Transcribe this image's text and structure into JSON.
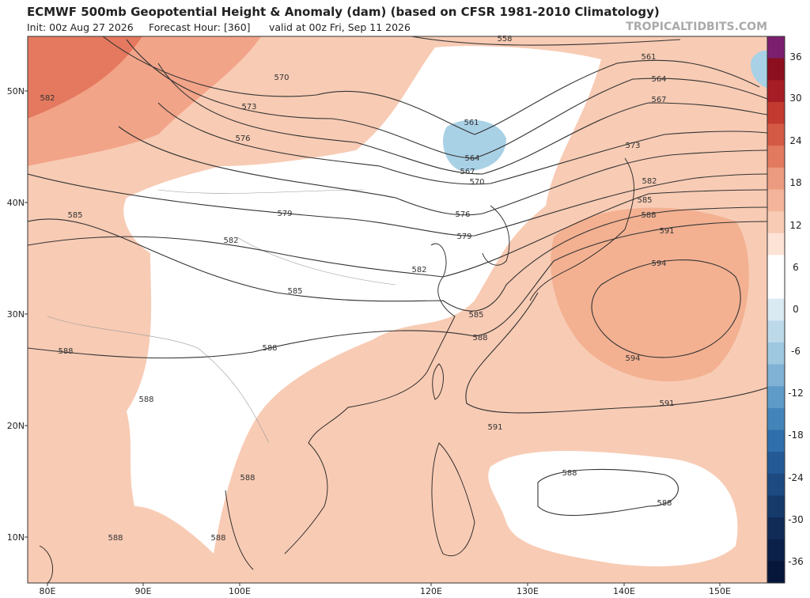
{
  "header": {
    "title": "ECMWF 500mb Geopotential Height & Anomaly (dam) (based on CFSR 1981-2010 Climatology)",
    "init": "Init: 00z Aug 27 2026",
    "forecast_hour": "Forecast Hour: [360]",
    "valid": "valid at 00z Fri, Sep 11 2026",
    "credit": "TROPICALTIDBITS.COM"
  },
  "map": {
    "lat_labels": [
      "50N",
      "40N",
      "30N",
      "20N",
      "10N"
    ],
    "lon_labels": [
      "80E",
      "90E",
      "100E",
      "120E",
      "130E",
      "140E",
      "150E"
    ],
    "contour_labels": [
      "558",
      "561",
      "564",
      "567",
      "570",
      "573",
      "576",
      "579",
      "582",
      "582",
      "585",
      "585",
      "582",
      "561",
      "564",
      "567",
      "570",
      "576",
      "579",
      "573",
      "582",
      "585",
      "588",
      "591",
      "594",
      "594",
      "591",
      "591",
      "585",
      "588",
      "588",
      "588",
      "588",
      "588",
      "588",
      "588",
      "588",
      "588"
    ]
  },
  "colorbar": {
    "ticks": [
      "36",
      "30",
      "24",
      "18",
      "12",
      "6",
      "0",
      "-6",
      "-12",
      "-18",
      "-24",
      "-30",
      "-36"
    ]
  }
}
